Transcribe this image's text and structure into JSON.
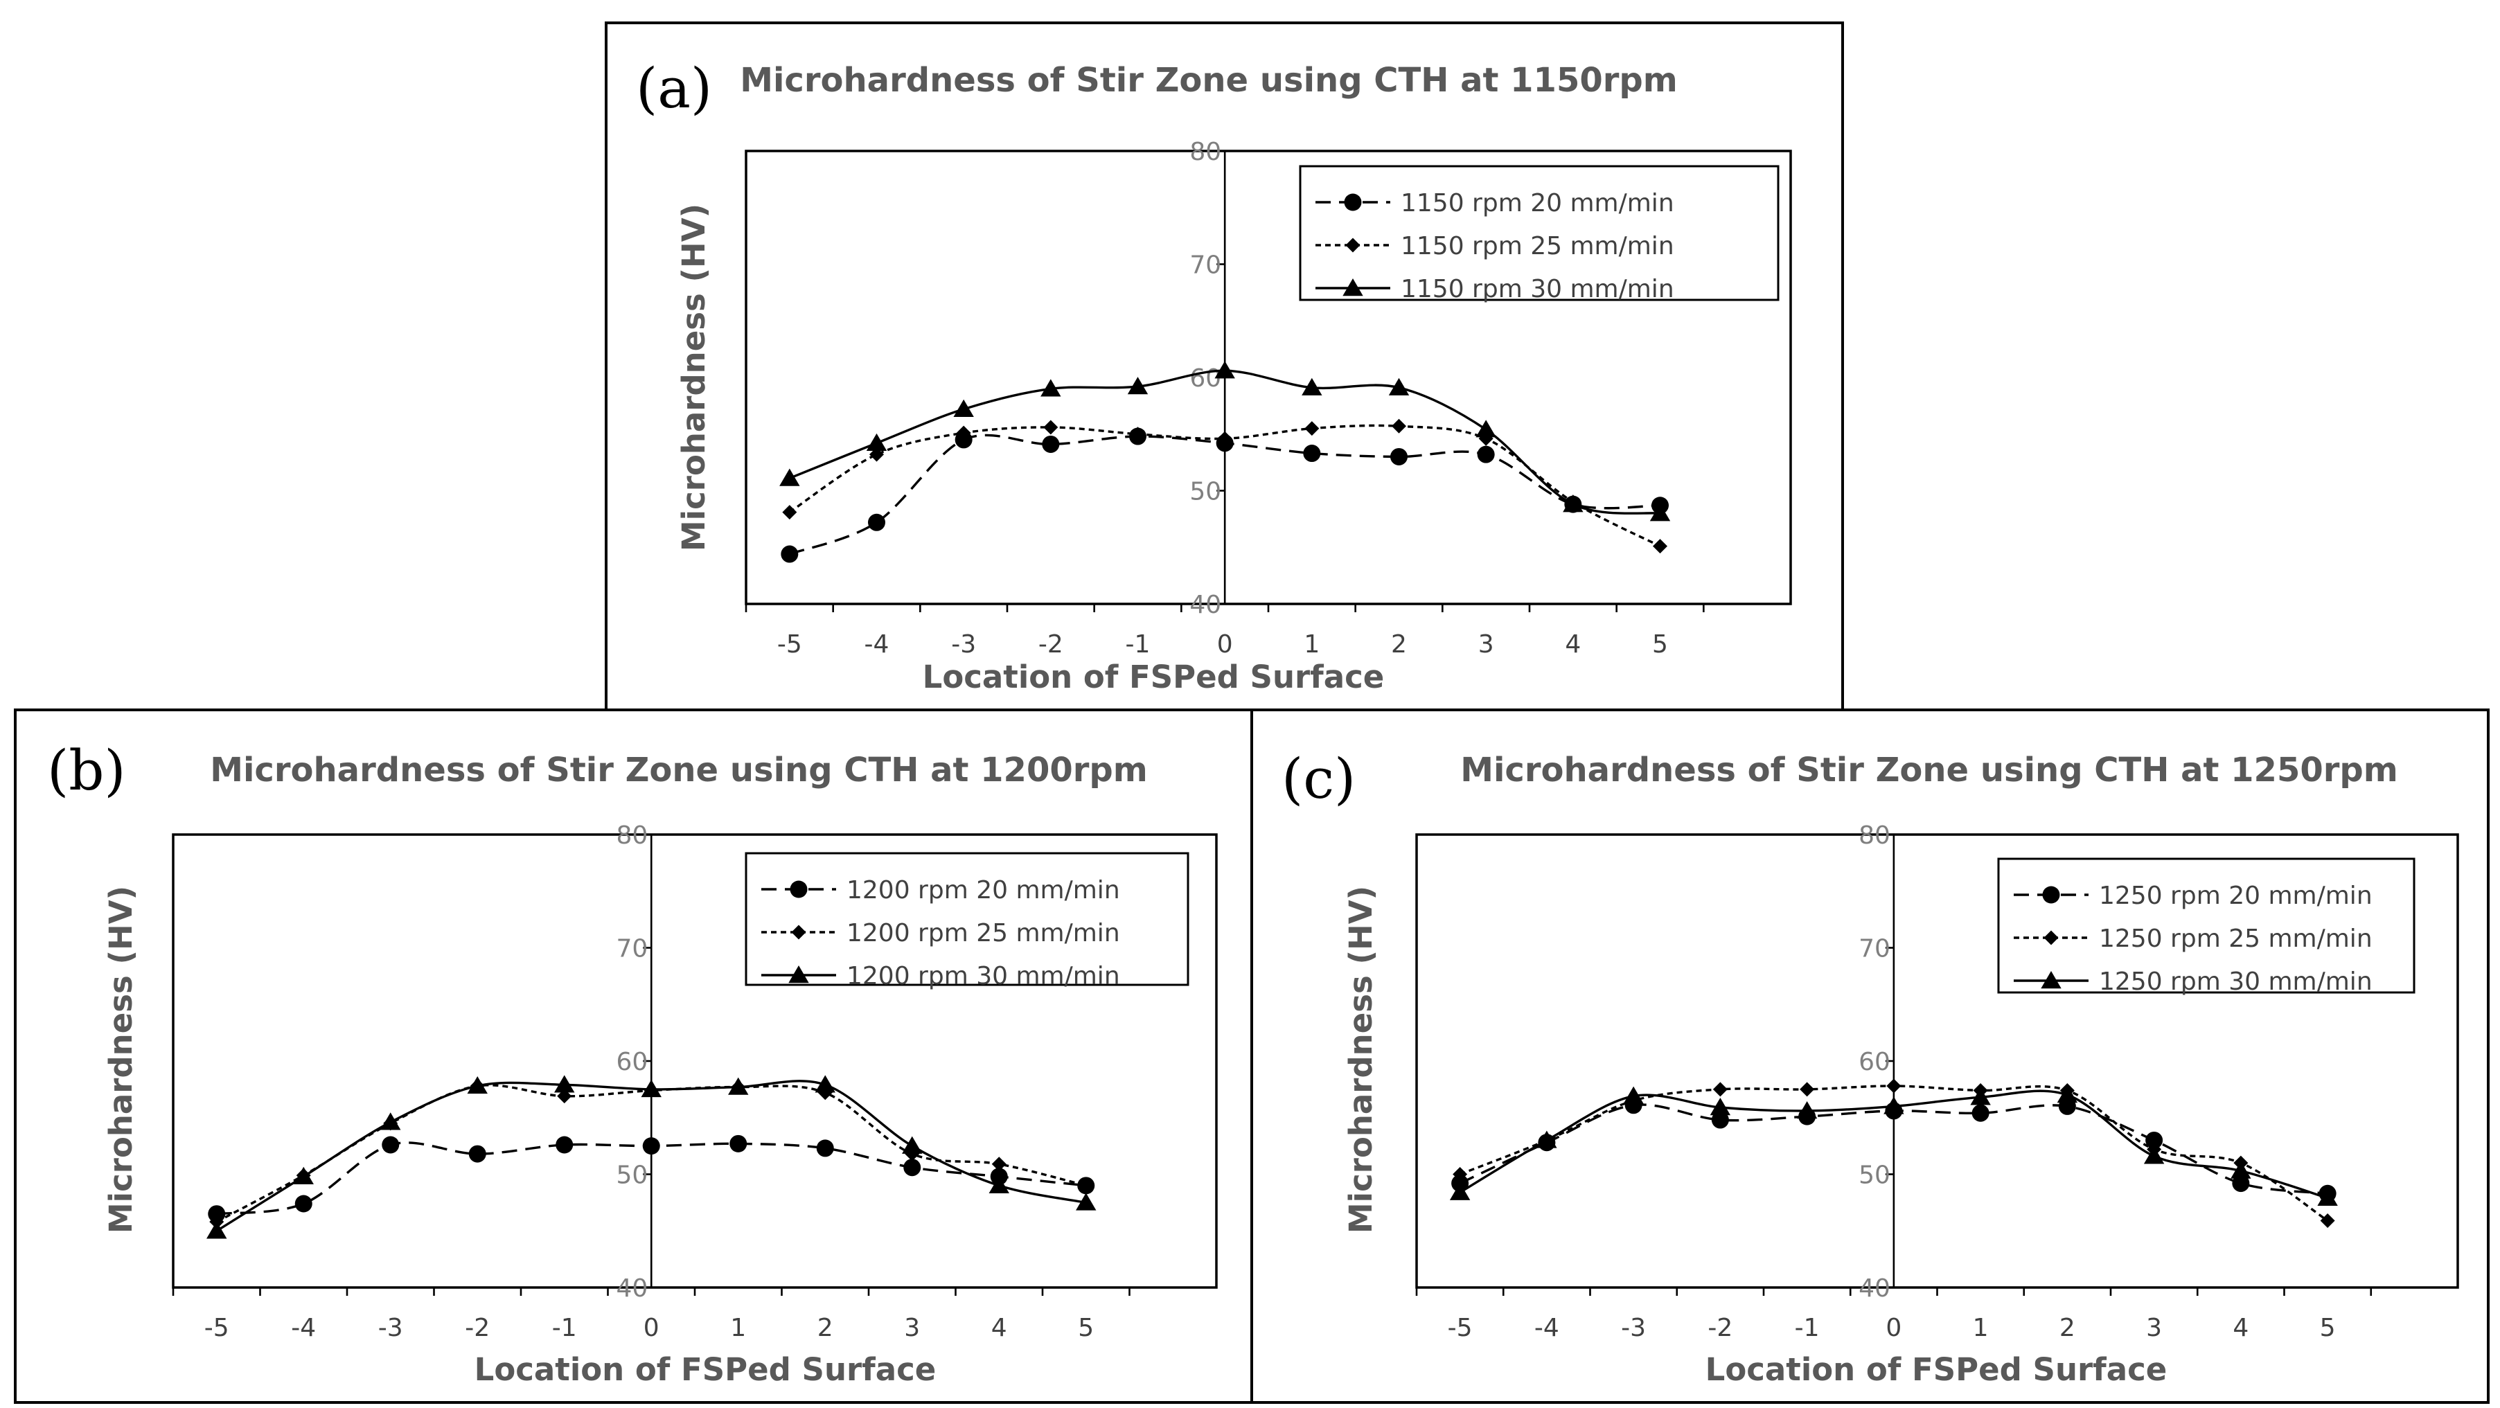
{
  "chart_data": [
    {
      "id": "a",
      "type": "line",
      "panel_label": "(a)",
      "title": "Microhardness of Stir Zone using CTH at 1150rpm",
      "xlabel": "Location of FSPed Surface",
      "ylabel": "Microhardness (HV)",
      "xlim": [
        -5.5,
        6.5
      ],
      "ylim": [
        40,
        80
      ],
      "ytick_values": [
        40,
        50,
        60,
        70,
        80
      ],
      "ytick_labels": [
        "40",
        "50",
        "60",
        "70",
        "80"
      ],
      "x": [
        -5,
        -4,
        -3,
        -2,
        -1,
        0,
        1,
        2,
        3,
        4,
        5
      ],
      "xtick_labels": [
        "-5",
        "-4",
        "-3",
        "-2",
        "-1",
        "0",
        "1",
        "2",
        "3",
        "4",
        "5"
      ],
      "legend_position": "top-right",
      "series": [
        {
          "name": "1150 rpm 20 mm/min",
          "marker": "circle",
          "dash": "long-dash",
          "values": [
            44.4,
            47.2,
            54.5,
            54.1,
            54.8,
            54.2,
            53.3,
            53.0,
            53.2,
            48.8,
            48.7
          ]
        },
        {
          "name": "1150 rpm 25 mm/min",
          "marker": "diamond",
          "dash": "short-dash",
          "values": [
            48.1,
            53.2,
            55.1,
            55.6,
            55.0,
            54.6,
            55.5,
            55.7,
            54.6,
            49.0,
            45.1
          ]
        },
        {
          "name": "1150 rpm 30 mm/min",
          "marker": "triangle",
          "dash": "solid",
          "values": [
            51.1,
            54.2,
            57.2,
            59.0,
            59.2,
            60.6,
            59.1,
            59.1,
            55.4,
            48.8,
            48.0
          ]
        }
      ]
    },
    {
      "id": "b",
      "type": "line",
      "panel_label": "(b)",
      "title": "Microhardness of Stir Zone using CTH at 1200rpm",
      "xlabel": "Location of FSPed Surface",
      "ylabel": "Microhardness (HV)",
      "xlim": [
        -5.5,
        6.5
      ],
      "ylim": [
        40,
        80
      ],
      "ytick_values": [
        40,
        50,
        60,
        70,
        80
      ],
      "ytick_labels": [
        "40",
        "50",
        "60",
        "70",
        "80"
      ],
      "x": [
        -5,
        -4,
        -3,
        -2,
        -1,
        0,
        1,
        2,
        3,
        4,
        5
      ],
      "xtick_labels": [
        "-5",
        "-4",
        "-3",
        "-2",
        "-1",
        "0",
        "1",
        "2",
        "3",
        "4",
        "5"
      ],
      "legend_position": "top-right",
      "series": [
        {
          "name": "1200 rpm 20 mm/min",
          "marker": "circle",
          "dash": "long-dash",
          "values": [
            46.5,
            47.4,
            52.6,
            51.8,
            52.6,
            52.5,
            52.7,
            52.3,
            50.6,
            49.8,
            49.0
          ]
        },
        {
          "name": "1200 rpm 25 mm/min",
          "marker": "diamond",
          "dash": "short-dash",
          "values": [
            45.8,
            49.9,
            54.5,
            57.8,
            56.9,
            57.4,
            57.7,
            57.2,
            51.8,
            50.9,
            49.0
          ]
        },
        {
          "name": "1200 rpm 30 mm/min",
          "marker": "triangle",
          "dash": "solid",
          "values": [
            45.0,
            49.8,
            54.6,
            57.8,
            57.9,
            57.5,
            57.7,
            57.9,
            52.5,
            49.0,
            47.5
          ]
        }
      ]
    },
    {
      "id": "c",
      "type": "line",
      "panel_label": "(c)",
      "title": "Microhardness of Stir Zone using CTH at 1250rpm",
      "xlabel": "Location of FSPed Surface",
      "ylabel": "Microhardness (HV)",
      "xlim": [
        -5.5,
        6.5
      ],
      "ylim": [
        40,
        80
      ],
      "ytick_values": [
        40,
        50,
        60,
        70,
        80
      ],
      "ytick_labels": [
        "40",
        "50",
        "60",
        "70",
        "80"
      ],
      "x": [
        -5,
        -4,
        -3,
        -2,
        -1,
        0,
        1,
        2,
        3,
        4,
        5
      ],
      "xtick_labels": [
        "-5",
        "-4",
        "-3",
        "-2",
        "-1",
        "0",
        "1",
        "2",
        "3",
        "4",
        "5"
      ],
      "legend_position": "top-right",
      "series": [
        {
          "name": "1250 rpm 20 mm/min",
          "marker": "circle",
          "dash": "long-dash",
          "values": [
            49.2,
            52.8,
            56.1,
            54.8,
            55.1,
            55.6,
            55.4,
            56.0,
            53.0,
            49.2,
            48.3
          ]
        },
        {
          "name": "1250 rpm 25 mm/min",
          "marker": "diamond",
          "dash": "short-dash",
          "values": [
            50.0,
            53.0,
            56.5,
            57.5,
            57.5,
            57.8,
            57.4,
            57.4,
            52.2,
            51.0,
            45.9
          ]
        },
        {
          "name": "1250 rpm 30 mm/min",
          "marker": "triangle",
          "dash": "solid",
          "values": [
            48.4,
            53.0,
            56.9,
            55.9,
            55.6,
            56.0,
            56.8,
            57.0,
            51.6,
            50.3,
            47.9
          ]
        }
      ]
    }
  ]
}
